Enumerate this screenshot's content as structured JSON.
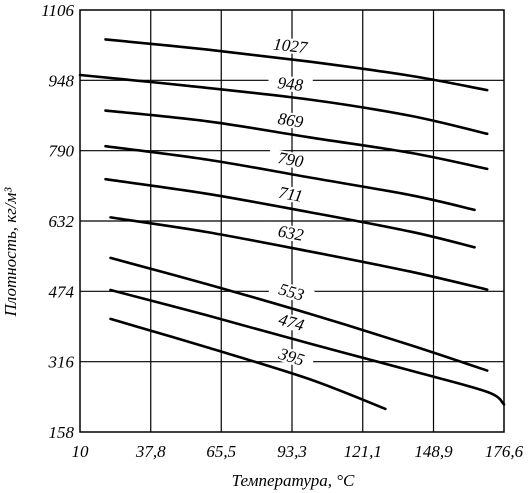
{
  "chart_data": {
    "type": "line",
    "xlabel": "Температура, °C",
    "ylabel": "Плотность, кг/м³",
    "x_ticks": [
      "10",
      "37,8",
      "65,5",
      "93,3",
      "121,1",
      "148,9",
      "176,6"
    ],
    "y_ticks": [
      "158",
      "316",
      "474",
      "632",
      "790",
      "948",
      "1106"
    ],
    "xlim": [
      10,
      176.6
    ],
    "ylim": [
      158,
      1106
    ],
    "grid": true,
    "series": [
      {
        "name": "1027",
        "x": [
          20,
          60,
          100,
          140,
          170
        ],
        "y": [
          1040,
          1017,
          990,
          958,
          926
        ]
      },
      {
        "name": "948",
        "x": [
          10,
          50,
          100,
          140,
          170
        ],
        "y": [
          960,
          937,
          905,
          868,
          828
        ]
      },
      {
        "name": "869",
        "x": [
          20,
          60,
          100,
          140,
          170
        ],
        "y": [
          880,
          856,
          820,
          785,
          749
        ]
      },
      {
        "name": "790",
        "x": [
          20,
          60,
          100,
          140,
          165
        ],
        "y": [
          800,
          770,
          730,
          690,
          657
        ]
      },
      {
        "name": "711",
        "x": [
          20,
          60,
          100,
          140,
          165
        ],
        "y": [
          726,
          693,
          652,
          608,
          573
        ]
      },
      {
        "name": "632",
        "x": [
          22,
          60,
          100,
          140,
          170
        ],
        "y": [
          640,
          607,
          564,
          518,
          478
        ]
      },
      {
        "name": "553",
        "x": [
          22,
          60,
          100,
          140,
          170
        ],
        "y": [
          549,
          490,
          424,
          353,
          296
        ]
      },
      {
        "name": "474",
        "x": [
          22,
          60,
          100,
          140,
          170,
          176.6
        ],
        "y": [
          477,
          420,
          357,
          296,
          248,
          220
        ]
      },
      {
        "name": "395",
        "x": [
          22,
          60,
          100,
          130
        ],
        "y": [
          412,
          348,
          277,
          210
        ]
      }
    ]
  }
}
